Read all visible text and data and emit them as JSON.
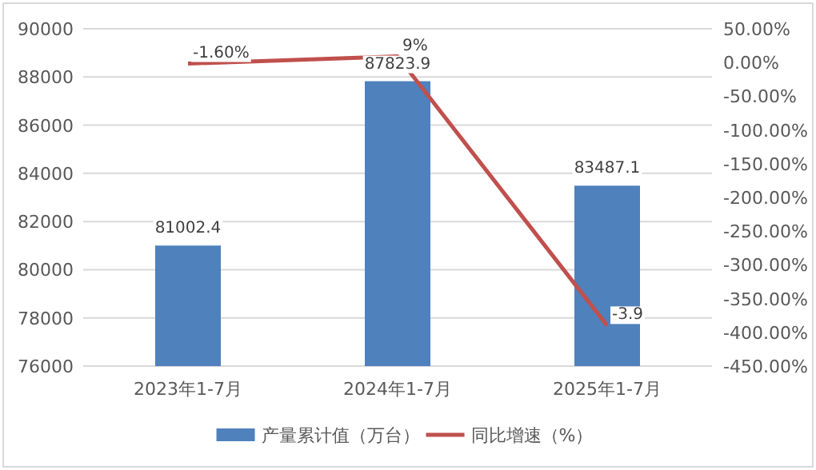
{
  "chart_data": {
    "type": "bar",
    "categories": [
      "2023年1-7月",
      "2024年1-7月",
      "2025年1-7月"
    ],
    "series": [
      {
        "name": "产量累计值（万台）",
        "color": "#4f81bd",
        "values": [
          81002.4,
          87823.9,
          83487.1
        ],
        "value_labels": [
          "81002.4",
          "87823.9",
          "83487.1"
        ]
      },
      {
        "name": "同比增速（%）",
        "type": "line",
        "axis": "y2",
        "color": "#c0504d",
        "values": [
          -0.016,
          0.09,
          -3.9
        ],
        "value_labels": [
          "-1.60%",
          "9%",
          "-3.9"
        ]
      }
    ],
    "ylim": [
      76000,
      90000
    ],
    "yticks": [
      76000,
      78000,
      80000,
      82000,
      84000,
      86000,
      88000,
      90000
    ],
    "y2lim": [
      -4.5,
      0.5
    ],
    "y2ticks": [
      {
        "value": -4.5,
        "label": "-450.00%"
      },
      {
        "value": -4,
        "label": "-400.00%"
      },
      {
        "value": -3.5,
        "label": "-350.00%"
      },
      {
        "value": -3,
        "label": "-300.00%"
      },
      {
        "value": -2.5,
        "label": "-250.00%"
      },
      {
        "value": -2,
        "label": "-200.00%"
      },
      {
        "value": -1.5,
        "label": "-150.00%"
      },
      {
        "value": -1,
        "label": "-100.00%"
      },
      {
        "value": -0.5,
        "label": "-50.00%"
      },
      {
        "value": 0,
        "label": "0.00%"
      },
      {
        "value": 0.5,
        "label": "50.00%"
      }
    ],
    "grid": "y",
    "legend": "bottom"
  }
}
